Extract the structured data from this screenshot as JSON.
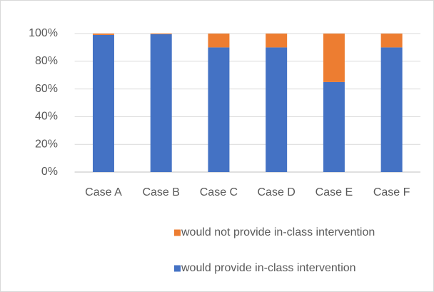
{
  "chart_data": {
    "type": "bar",
    "stacked": true,
    "categories": [
      "Case A",
      "Case B",
      "Case C",
      "Case D",
      "Case E",
      "Case F"
    ],
    "series": [
      {
        "name": "would provide in-class intervention",
        "color": "#4472c4",
        "values": [
          99,
          99.5,
          90,
          90,
          65,
          90
        ]
      },
      {
        "name": "would not provide in-class intervention",
        "color": "#ed7d31",
        "values": [
          1,
          0.5,
          10,
          10,
          35,
          10
        ]
      }
    ],
    "ylim": [
      0,
      100
    ],
    "yticks": [
      {
        "value": 0,
        "label": "0%"
      },
      {
        "value": 20,
        "label": "20%"
      },
      {
        "value": 40,
        "label": "40%"
      },
      {
        "value": 60,
        "label": "60%"
      },
      {
        "value": 80,
        "label": "80%"
      },
      {
        "value": 100,
        "label": "100%"
      }
    ],
    "grid": true,
    "legend": "bottom"
  }
}
